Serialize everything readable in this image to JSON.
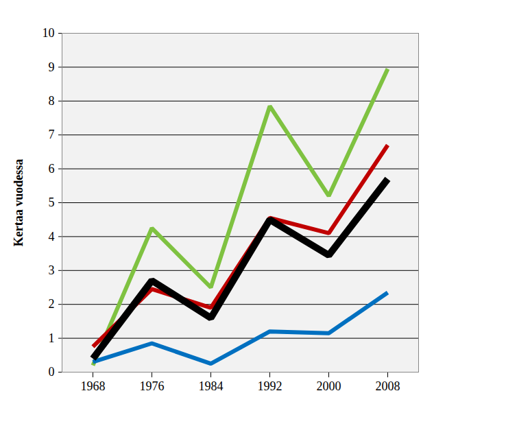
{
  "chart_data": {
    "type": "line",
    "y_label": "Kertaa vuodessa",
    "categories": [
      "1968",
      "1976",
      "1984",
      "1992",
      "2000",
      "2008"
    ],
    "series": [
      {
        "color": "#7fc241",
        "values": [
          0.2,
          4.25,
          2.5,
          7.85,
          5.2,
          8.95
        ]
      },
      {
        "color": "#c00000",
        "values": [
          0.75,
          2.45,
          1.9,
          4.55,
          4.1,
          6.7
        ]
      },
      {
        "color": "#0070c0",
        "values": [
          0.3,
          0.85,
          0.25,
          1.2,
          1.15,
          2.35
        ]
      },
      {
        "color": "#000000",
        "values": [
          0.4,
          2.7,
          1.6,
          4.5,
          3.45,
          5.7
        ]
      }
    ],
    "ylim": [
      0,
      10
    ],
    "yticks": [
      0,
      1,
      2,
      3,
      4,
      5,
      6,
      7,
      8,
      9,
      10
    ],
    "grid": true
  }
}
